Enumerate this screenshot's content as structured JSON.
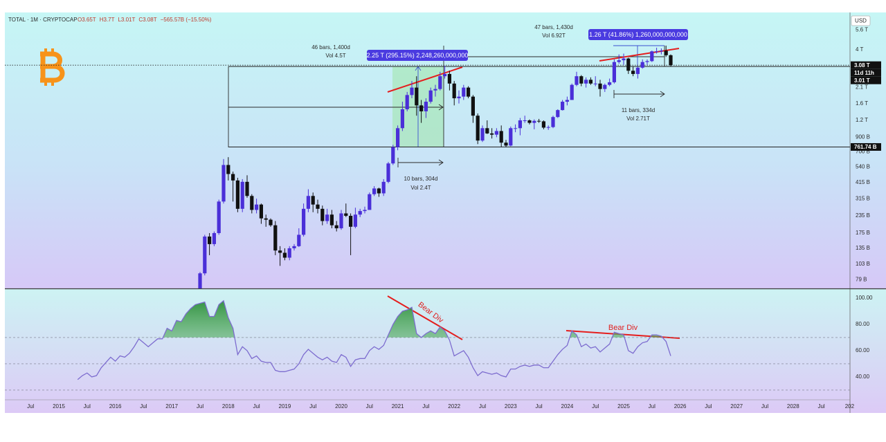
{
  "chart_data": [
    {
      "type": "candlestick",
      "title": "TOTAL · 1M · CRYPTOCAP",
      "ohlc_labels": [
        "O3.65T",
        "H3.7T",
        "L3.01T",
        "C3.08T",
        "−565.57B (−15.50%)"
      ],
      "currency": "USD",
      "x": [
        "2017-07",
        "2017-08",
        "2017-09",
        "2017-10",
        "2017-11",
        "2017-12",
        "2018-01",
        "2018-02",
        "2018-03",
        "2018-04",
        "2018-05",
        "2018-06",
        "2018-07",
        "2018-08",
        "2018-09",
        "2018-10",
        "2018-11",
        "2018-12",
        "2019-01",
        "2019-02",
        "2019-03",
        "2019-04",
        "2019-05",
        "2019-06",
        "2019-07",
        "2019-08",
        "2019-09",
        "2019-10",
        "2019-11",
        "2019-12",
        "2020-01",
        "2020-02",
        "2020-03",
        "2020-04",
        "2020-05",
        "2020-06",
        "2020-07",
        "2020-08",
        "2020-09",
        "2020-10",
        "2020-11",
        "2020-12",
        "2021-01",
        "2021-02",
        "2021-03",
        "2021-04",
        "2021-05",
        "2021-06",
        "2021-07",
        "2021-08",
        "2021-09",
        "2021-10",
        "2021-11",
        "2021-12",
        "2022-01",
        "2022-02",
        "2022-03",
        "2022-04",
        "2022-05",
        "2022-06",
        "2022-07",
        "2022-08",
        "2022-09",
        "2022-10",
        "2022-11",
        "2022-12",
        "2023-01",
        "2023-02",
        "2023-03",
        "2023-04",
        "2023-05",
        "2023-06",
        "2023-07",
        "2023-08",
        "2023-09",
        "2023-10",
        "2023-11",
        "2023-12",
        "2024-01",
        "2024-02",
        "2024-03",
        "2024-04",
        "2024-05",
        "2024-06",
        "2024-07",
        "2024-08",
        "2024-09",
        "2024-10",
        "2024-11",
        "2024-12",
        "2025-01",
        "2025-02",
        "2025-03",
        "2025-04",
        "2025-05",
        "2025-06",
        "2025-07",
        "2025-08",
        "2025-09",
        "2025-10",
        "2025-11"
      ],
      "open": [
        66,
        88,
        165,
        145,
        175,
        300,
        560,
        480,
        430,
        265,
        420,
        330,
        260,
        285,
        225,
        220,
        200,
        130,
        125,
        115,
        135,
        140,
        170,
        265,
        330,
        285,
        265,
        215,
        240,
        200,
        190,
        245,
        235,
        195,
        240,
        255,
        260,
        340,
        375,
        345,
        420,
        575,
        760,
        1050,
        1450,
        1850,
        2100,
        1550,
        1400,
        1650,
        2000,
        2050,
        2550,
        2650,
        2250,
        1750,
        1800,
        2100,
        1800,
        1300,
        850,
        1050,
        960,
        940,
        1000,
        820,
        780,
        1050,
        1050,
        1200,
        1200,
        1150,
        1190,
        1180,
        1060,
        1070,
        1270,
        1430,
        1650,
        1700,
        2200,
        2550,
        2250,
        2400,
        2250,
        2250,
        2050,
        2200,
        2300,
        3250,
        3350,
        3450,
        2800,
        2650,
        2950,
        3250,
        3300,
        3900,
        3900,
        3950,
        3650
      ],
      "high": [
        90,
        170,
        175,
        180,
        310,
        620,
        640,
        500,
        450,
        440,
        470,
        340,
        315,
        290,
        240,
        225,
        215,
        140,
        135,
        140,
        145,
        190,
        290,
        370,
        350,
        310,
        280,
        265,
        260,
        215,
        260,
        290,
        245,
        270,
        265,
        275,
        350,
        390,
        380,
        440,
        590,
        790,
        1100,
        1650,
        1950,
        2350,
        2550,
        1700,
        1750,
        2100,
        2200,
        2750,
        3050,
        2800,
        2350,
        2000,
        2200,
        2150,
        1850,
        1350,
        1100,
        1200,
        1050,
        1050,
        1100,
        860,
        1080,
        1120,
        1250,
        1300,
        1220,
        1220,
        1230,
        1200,
        1100,
        1300,
        1450,
        1700,
        1800,
        2250,
        2750,
        2600,
        2500,
        2500,
        2550,
        2400,
        2250,
        2450,
        3400,
        3700,
        3750,
        3500,
        3000,
        3000,
        3400,
        3400,
        3950,
        4150,
        4100,
        4300,
        3700
      ],
      "low": [
        62,
        85,
        120,
        140,
        170,
        290,
        430,
        300,
        250,
        250,
        320,
        245,
        245,
        205,
        195,
        195,
        120,
        100,
        110,
        110,
        130,
        138,
        165,
        250,
        250,
        245,
        200,
        205,
        190,
        180,
        185,
        230,
        120,
        190,
        230,
        245,
        260,
        330,
        325,
        330,
        410,
        560,
        720,
        1000,
        1400,
        1750,
        1300,
        1150,
        1250,
        1600,
        1800,
        2000,
        2450,
        2000,
        1550,
        1600,
        1700,
        1750,
        1150,
        800,
        830,
        950,
        880,
        900,
        760,
        760,
        770,
        980,
        930,
        1150,
        1120,
        1030,
        1150,
        1030,
        1020,
        1050,
        1250,
        1420,
        1550,
        1700,
        2150,
        2150,
        2100,
        2200,
        2150,
        1800,
        1950,
        2150,
        2250,
        3150,
        3100,
        2650,
        2550,
        2450,
        2900,
        3100,
        3250,
        3750,
        3700,
        3550,
        3010
      ],
      "close": [
        88,
        165,
        145,
        175,
        300,
        560,
        480,
        430,
        265,
        420,
        330,
        260,
        285,
        225,
        220,
        200,
        130,
        125,
        115,
        135,
        140,
        170,
        265,
        330,
        285,
        265,
        215,
        240,
        200,
        190,
        245,
        235,
        195,
        240,
        255,
        260,
        340,
        375,
        345,
        420,
        575,
        760,
        1050,
        1450,
        1850,
        2100,
        1550,
        1400,
        1650,
        2000,
        2050,
        2550,
        2650,
        2250,
        1750,
        1800,
        2100,
        1800,
        1300,
        850,
        1050,
        960,
        940,
        1000,
        820,
        780,
        1050,
        1050,
        1200,
        1200,
        1150,
        1190,
        1180,
        1060,
        1070,
        1270,
        1430,
        1650,
        1700,
        2200,
        2550,
        2250,
        2400,
        2250,
        2250,
        2050,
        2200,
        2300,
        3250,
        3350,
        3450,
        2800,
        2650,
        2950,
        3250,
        3300,
        3900,
        3900,
        3950,
        3650,
        3080
      ],
      "up_color": "#4a2fd8",
      "down_color": "#111111",
      "log_scale": true,
      "xlim": [
        "2014-01",
        "2029-01"
      ],
      "ylim": [
        68,
        7400
      ],
      "yticks": [
        {
          "value": 5600,
          "label": "5.6 T"
        },
        {
          "value": 4000,
          "label": "4 T"
        },
        {
          "value": 2100,
          "label": "2.1 T"
        },
        {
          "value": 1600,
          "label": "1.6 T"
        },
        {
          "value": 1200,
          "label": "1.2 T"
        },
        {
          "value": 900,
          "label": "900 B"
        },
        {
          "value": 700,
          "label": "700 B"
        },
        {
          "value": 540,
          "label": "540 B"
        },
        {
          "value": 415,
          "label": "415 B"
        },
        {
          "value": 315,
          "label": "315 B"
        },
        {
          "value": 235,
          "label": "235 B"
        },
        {
          "value": 175,
          "label": "175 B"
        },
        {
          "value": 135,
          "label": "135 B"
        },
        {
          "value": 103,
          "label": "103 B"
        },
        {
          "value": 79,
          "label": "79 B"
        }
      ],
      "price_labels": [
        {
          "value": 3080,
          "label": "3.08 T",
          "line": "dotted"
        },
        {
          "value": 3010,
          "label": "3.01 T",
          "line": "solid"
        },
        {
          "value": 761.74,
          "label": "761.74 B",
          "line": "solid"
        }
      ],
      "countdown": "11d 11h",
      "annotations": [
        "46 bars, 1,400d",
        "Vol 4.5T",
        "47 bars, 1,430d",
        "Vol 6.92T",
        "10 bars, 304d",
        "Vol 2.4T",
        "11 bars, 334d",
        "Vol 2.71T"
      ],
      "measure_labels": [
        "2.25 T (295.15%) 2,248,260,000,000",
        "1.26 T (41.86%) 1,260,000,000,000"
      ]
    },
    {
      "type": "line",
      "x": [
        "2015-05",
        "2015-06",
        "2015-07",
        "2015-08",
        "2015-09",
        "2015-10",
        "2015-11",
        "2015-12",
        "2016-01",
        "2016-02",
        "2016-03",
        "2016-04",
        "2016-05",
        "2016-06",
        "2016-07",
        "2016-08",
        "2016-09",
        "2016-10",
        "2016-11",
        "2016-12",
        "2017-01",
        "2017-02",
        "2017-03",
        "2017-04",
        "2017-05",
        "2017-06",
        "2017-07",
        "2017-08",
        "2017-09",
        "2017-10",
        "2017-11",
        "2017-12",
        "2018-01",
        "2018-02",
        "2018-03",
        "2018-04",
        "2018-05",
        "2018-06",
        "2018-07",
        "2018-08",
        "2018-09",
        "2018-10",
        "2018-11",
        "2018-12",
        "2019-01",
        "2019-02",
        "2019-03",
        "2019-04",
        "2019-05",
        "2019-06",
        "2019-07",
        "2019-08",
        "2019-09",
        "2019-10",
        "2019-11",
        "2019-12",
        "2020-01",
        "2020-02",
        "2020-03",
        "2020-04",
        "2020-05",
        "2020-06",
        "2020-07",
        "2020-08",
        "2020-09",
        "2020-10",
        "2020-11",
        "2020-12",
        "2021-01",
        "2021-02",
        "2021-03",
        "2021-04",
        "2021-05",
        "2021-06",
        "2021-07",
        "2021-08",
        "2021-09",
        "2021-10",
        "2021-11",
        "2021-12",
        "2022-01",
        "2022-02",
        "2022-03",
        "2022-04",
        "2022-05",
        "2022-06",
        "2022-07",
        "2022-08",
        "2022-09",
        "2022-10",
        "2022-11",
        "2022-12",
        "2023-01",
        "2023-02",
        "2023-03",
        "2023-04",
        "2023-05",
        "2023-06",
        "2023-07",
        "2023-08",
        "2023-09",
        "2023-10",
        "2023-11",
        "2023-12",
        "2024-01",
        "2024-02",
        "2024-03",
        "2024-04",
        "2024-05",
        "2024-06",
        "2024-07",
        "2024-08",
        "2024-09",
        "2024-10",
        "2024-11",
        "2024-12",
        "2025-01",
        "2025-02",
        "2025-03",
        "2025-04",
        "2025-05",
        "2025-06",
        "2025-07",
        "2025-08",
        "2025-09",
        "2025-10",
        "2025-11"
      ],
      "values": [
        38,
        41,
        43,
        40,
        41,
        47,
        51,
        55,
        52,
        56,
        55,
        58,
        63,
        69,
        66,
        63,
        66,
        69,
        69,
        77,
        75,
        83,
        82,
        88,
        92,
        95,
        96,
        97,
        86,
        86,
        95,
        98,
        85,
        77,
        57,
        63,
        60,
        54,
        56,
        52,
        51,
        51,
        45,
        44,
        44,
        45,
        46,
        50,
        57,
        61,
        58,
        55,
        53,
        55,
        52,
        51,
        57,
        55,
        48,
        53,
        54,
        54,
        60,
        63,
        61,
        64,
        72,
        80,
        86,
        90,
        91,
        93,
        73,
        70,
        73,
        75,
        73,
        78,
        75,
        68,
        56,
        58,
        60,
        55,
        47,
        41,
        44,
        43,
        42,
        43,
        41,
        40,
        46,
        46,
        48,
        49,
        48,
        49,
        49,
        47,
        47,
        52,
        57,
        61,
        64,
        75,
        72,
        63,
        65,
        62,
        63,
        59,
        62,
        65,
        74,
        73,
        72,
        60,
        58,
        63,
        66,
        67,
        72,
        72,
        71,
        67,
        56
      ],
      "color": "#7d6ccf",
      "fill_color": "#3f9e47",
      "levels": [
        70,
        50,
        30
      ],
      "xlim": [
        "2014-01",
        "2029-01"
      ],
      "ylim": [
        22.6,
        106.8
      ],
      "yticks": [
        {
          "value": 100,
          "label": "100.00"
        },
        {
          "value": 80,
          "label": "80.00"
        },
        {
          "value": 60,
          "label": "60.00"
        },
        {
          "value": 40,
          "label": "40.00"
        }
      ],
      "xticks": [
        {
          "value": "2014-07",
          "label": "Jul"
        },
        {
          "value": "2015-01",
          "label": "2015"
        },
        {
          "value": "2015-07",
          "label": "Jul"
        },
        {
          "value": "2016-01",
          "label": "2016"
        },
        {
          "value": "2016-07",
          "label": "Jul"
        },
        {
          "value": "2017-01",
          "label": "2017"
        },
        {
          "value": "2017-07",
          "label": "Jul"
        },
        {
          "value": "2018-01",
          "label": "2018"
        },
        {
          "value": "2018-07",
          "label": "Jul"
        },
        {
          "value": "2019-01",
          "label": "2019"
        },
        {
          "value": "2019-07",
          "label": "Jul"
        },
        {
          "value": "2020-01",
          "label": "2020"
        },
        {
          "value": "2020-07",
          "label": "Jul"
        },
        {
          "value": "2021-01",
          "label": "2021"
        },
        {
          "value": "2021-07",
          "label": "Jul"
        },
        {
          "value": "2022-01",
          "label": "2022"
        },
        {
          "value": "2022-07",
          "label": "Jul"
        },
        {
          "value": "2023-01",
          "label": "2023"
        },
        {
          "value": "2023-07",
          "label": "Jul"
        },
        {
          "value": "2024-01",
          "label": "2024"
        },
        {
          "value": "2024-07",
          "label": "Jul"
        },
        {
          "value": "2025-01",
          "label": "2025"
        },
        {
          "value": "2025-07",
          "label": "Jul"
        },
        {
          "value": "2026-01",
          "label": "2026"
        },
        {
          "value": "2026-07",
          "label": "Jul"
        },
        {
          "value": "2027-01",
          "label": "2027"
        },
        {
          "value": "2027-07",
          "label": "Jul"
        },
        {
          "value": "2028-01",
          "label": "2028"
        },
        {
          "value": "2028-07",
          "label": "Jul"
        },
        {
          "value": "2029-01",
          "label": "202"
        }
      ],
      "annotations": [
        "Bear Div",
        "Bear Div"
      ]
    }
  ]
}
